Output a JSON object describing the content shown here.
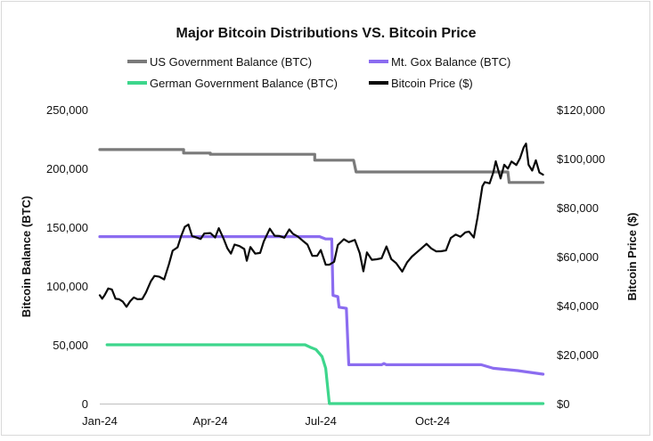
{
  "chart_data": {
    "type": "line",
    "title": "Major Bitcoin Distributions VS. Bitcoin Price",
    "ylabel_left": "Bitcoin Balance (BTC)",
    "ylabel_right": "Bitcoin Price ($)",
    "y_left_range": [
      0,
      250000
    ],
    "y_right_range": [
      0,
      120000
    ],
    "x_range": [
      "2024-01-01",
      "2025-01-01"
    ],
    "x_ticks": [
      {
        "date": "2024-01-01",
        "label": "Jan-24"
      },
      {
        "date": "2024-04-01",
        "label": "Apr-24"
      },
      {
        "date": "2024-07-01",
        "label": "Jul-24"
      },
      {
        "date": "2024-10-01",
        "label": "Oct-24"
      }
    ],
    "y_left_ticks": [
      {
        "value": 0,
        "label": "0"
      },
      {
        "value": 50000,
        "label": "50,000"
      },
      {
        "value": 100000,
        "label": "100,000"
      },
      {
        "value": 150000,
        "label": "150,000"
      },
      {
        "value": 200000,
        "label": "200,000"
      },
      {
        "value": 250000,
        "label": "250,000"
      }
    ],
    "y_right_ticks": [
      {
        "value": 0,
        "label": "$0"
      },
      {
        "value": 20000,
        "label": "$20,000"
      },
      {
        "value": 40000,
        "label": "$40,000"
      },
      {
        "value": 60000,
        "label": "$60,000"
      },
      {
        "value": 80000,
        "label": "$80,000"
      },
      {
        "value": 100000,
        "label": "$100,000"
      },
      {
        "value": 120000,
        "label": "$120,000"
      }
    ],
    "grid": false,
    "legend_position": "top",
    "series": [
      {
        "name": "US Government Balance (BTC)",
        "axis": "left",
        "color": "#7a7a7a",
        "points": [
          [
            "2024-01-01",
            216000
          ],
          [
            "2024-03-10",
            216000
          ],
          [
            "2024-03-10",
            213000
          ],
          [
            "2024-04-01",
            213000
          ],
          [
            "2024-04-01",
            212000
          ],
          [
            "2024-06-26",
            212000
          ],
          [
            "2024-06-26",
            207000
          ],
          [
            "2024-07-28",
            207000
          ],
          [
            "2024-07-30",
            197000
          ],
          [
            "2024-12-02",
            197000
          ],
          [
            "2024-12-03",
            188000
          ],
          [
            "2024-12-31",
            188000
          ]
        ]
      },
      {
        "name": "Mt. Gox Balance (BTC)",
        "axis": "left",
        "color": "#8b6cf0",
        "points": [
          [
            "2024-01-01",
            142000
          ],
          [
            "2024-06-30",
            142000
          ],
          [
            "2024-07-05",
            140000
          ],
          [
            "2024-07-10",
            140000
          ],
          [
            "2024-07-11",
            92000
          ],
          [
            "2024-07-15",
            91000
          ],
          [
            "2024-07-16",
            82000
          ],
          [
            "2024-07-22",
            81000
          ],
          [
            "2024-07-24",
            33000
          ],
          [
            "2024-08-20",
            33000
          ],
          [
            "2024-08-22",
            34000
          ],
          [
            "2024-08-24",
            33000
          ],
          [
            "2024-11-10",
            33000
          ],
          [
            "2024-11-20",
            30000
          ],
          [
            "2024-12-10",
            28000
          ],
          [
            "2024-12-31",
            25000
          ]
        ]
      },
      {
        "name": "German Government Balance (BTC)",
        "axis": "left",
        "color": "#3dd68c",
        "points": [
          [
            "2024-01-07",
            50000
          ],
          [
            "2024-06-18",
            50000
          ],
          [
            "2024-06-22",
            48000
          ],
          [
            "2024-06-27",
            46000
          ],
          [
            "2024-07-02",
            40000
          ],
          [
            "2024-07-05",
            30000
          ],
          [
            "2024-07-08",
            0
          ],
          [
            "2024-12-31",
            0
          ]
        ]
      },
      {
        "name": "Bitcoin Price ($)",
        "axis": "right",
        "color": "#0a0a0a",
        "points": [
          [
            "2024-01-01",
            44200
          ],
          [
            "2024-01-03",
            42800
          ],
          [
            "2024-01-05",
            44300
          ],
          [
            "2024-01-08",
            47000
          ],
          [
            "2024-01-11",
            46600
          ],
          [
            "2024-01-14",
            42800
          ],
          [
            "2024-01-17",
            42600
          ],
          [
            "2024-01-20",
            41600
          ],
          [
            "2024-01-23",
            39500
          ],
          [
            "2024-01-26",
            41800
          ],
          [
            "2024-01-29",
            43300
          ],
          [
            "2024-02-01",
            42600
          ],
          [
            "2024-02-05",
            42700
          ],
          [
            "2024-02-08",
            45300
          ],
          [
            "2024-02-12",
            49900
          ],
          [
            "2024-02-15",
            52100
          ],
          [
            "2024-02-19",
            51800
          ],
          [
            "2024-02-23",
            50700
          ],
          [
            "2024-02-27",
            57000
          ],
          [
            "2024-03-01",
            62400
          ],
          [
            "2024-03-05",
            63800
          ],
          [
            "2024-03-08",
            68300
          ],
          [
            "2024-03-11",
            72100
          ],
          [
            "2024-03-14",
            73100
          ],
          [
            "2024-03-17",
            68400
          ],
          [
            "2024-03-20",
            67900
          ],
          [
            "2024-03-24",
            67200
          ],
          [
            "2024-03-27",
            69400
          ],
          [
            "2024-04-01",
            69600
          ],
          [
            "2024-04-05",
            67800
          ],
          [
            "2024-04-08",
            71600
          ],
          [
            "2024-04-12",
            67200
          ],
          [
            "2024-04-15",
            63400
          ],
          [
            "2024-04-18",
            61200
          ],
          [
            "2024-04-21",
            64900
          ],
          [
            "2024-04-25",
            64300
          ],
          [
            "2024-04-29",
            63100
          ],
          [
            "2024-05-01",
            58300
          ],
          [
            "2024-05-04",
            63900
          ],
          [
            "2024-05-08",
            61200
          ],
          [
            "2024-05-12",
            61500
          ],
          [
            "2024-05-15",
            66200
          ],
          [
            "2024-05-20",
            71400
          ],
          [
            "2024-05-24",
            68500
          ],
          [
            "2024-05-28",
            68400
          ],
          [
            "2024-06-01",
            67700
          ],
          [
            "2024-06-05",
            71100
          ],
          [
            "2024-06-08",
            69300
          ],
          [
            "2024-06-12",
            68200
          ],
          [
            "2024-06-16",
            66500
          ],
          [
            "2024-06-20",
            64900
          ],
          [
            "2024-06-24",
            60300
          ],
          [
            "2024-06-28",
            60300
          ],
          [
            "2024-07-01",
            62700
          ],
          [
            "2024-07-05",
            56700
          ],
          [
            "2024-07-08",
            56700
          ],
          [
            "2024-07-12",
            57900
          ],
          [
            "2024-07-15",
            64700
          ],
          [
            "2024-07-20",
            67100
          ],
          [
            "2024-07-24",
            65900
          ],
          [
            "2024-07-29",
            66800
          ],
          [
            "2024-08-02",
            61400
          ],
          [
            "2024-08-05",
            54000
          ],
          [
            "2024-08-08",
            61700
          ],
          [
            "2024-08-12",
            58700
          ],
          [
            "2024-08-16",
            58900
          ],
          [
            "2024-08-20",
            59300
          ],
          [
            "2024-08-24",
            64100
          ],
          [
            "2024-08-28",
            59000
          ],
          [
            "2024-09-01",
            57300
          ],
          [
            "2024-09-06",
            53900
          ],
          [
            "2024-09-10",
            57600
          ],
          [
            "2024-09-14",
            60000
          ],
          [
            "2024-09-18",
            61700
          ],
          [
            "2024-09-22",
            63400
          ],
          [
            "2024-09-26",
            65200
          ],
          [
            "2024-09-30",
            63300
          ],
          [
            "2024-10-04",
            62100
          ],
          [
            "2024-10-08",
            62200
          ],
          [
            "2024-10-12",
            62500
          ],
          [
            "2024-10-16",
            67600
          ],
          [
            "2024-10-20",
            69000
          ],
          [
            "2024-10-24",
            68100
          ],
          [
            "2024-10-28",
            69900
          ],
          [
            "2024-10-31",
            70200
          ],
          [
            "2024-11-04",
            67800
          ],
          [
            "2024-11-07",
            75900
          ],
          [
            "2024-11-11",
            88700
          ],
          [
            "2024-11-13",
            90400
          ],
          [
            "2024-11-17",
            89900
          ],
          [
            "2024-11-20",
            94300
          ],
          [
            "2024-11-22",
            98900
          ],
          [
            "2024-11-26",
            91900
          ],
          [
            "2024-11-29",
            97500
          ],
          [
            "2024-12-02",
            95900
          ],
          [
            "2024-12-05",
            98800
          ],
          [
            "2024-12-09",
            97400
          ],
          [
            "2024-12-12",
            100100
          ],
          [
            "2024-12-15",
            104500
          ],
          [
            "2024-12-17",
            106100
          ],
          [
            "2024-12-19",
            97500
          ],
          [
            "2024-12-22",
            95100
          ],
          [
            "2024-12-25",
            99300
          ],
          [
            "2024-12-28",
            94300
          ],
          [
            "2024-12-31",
            93400
          ]
        ]
      }
    ]
  }
}
